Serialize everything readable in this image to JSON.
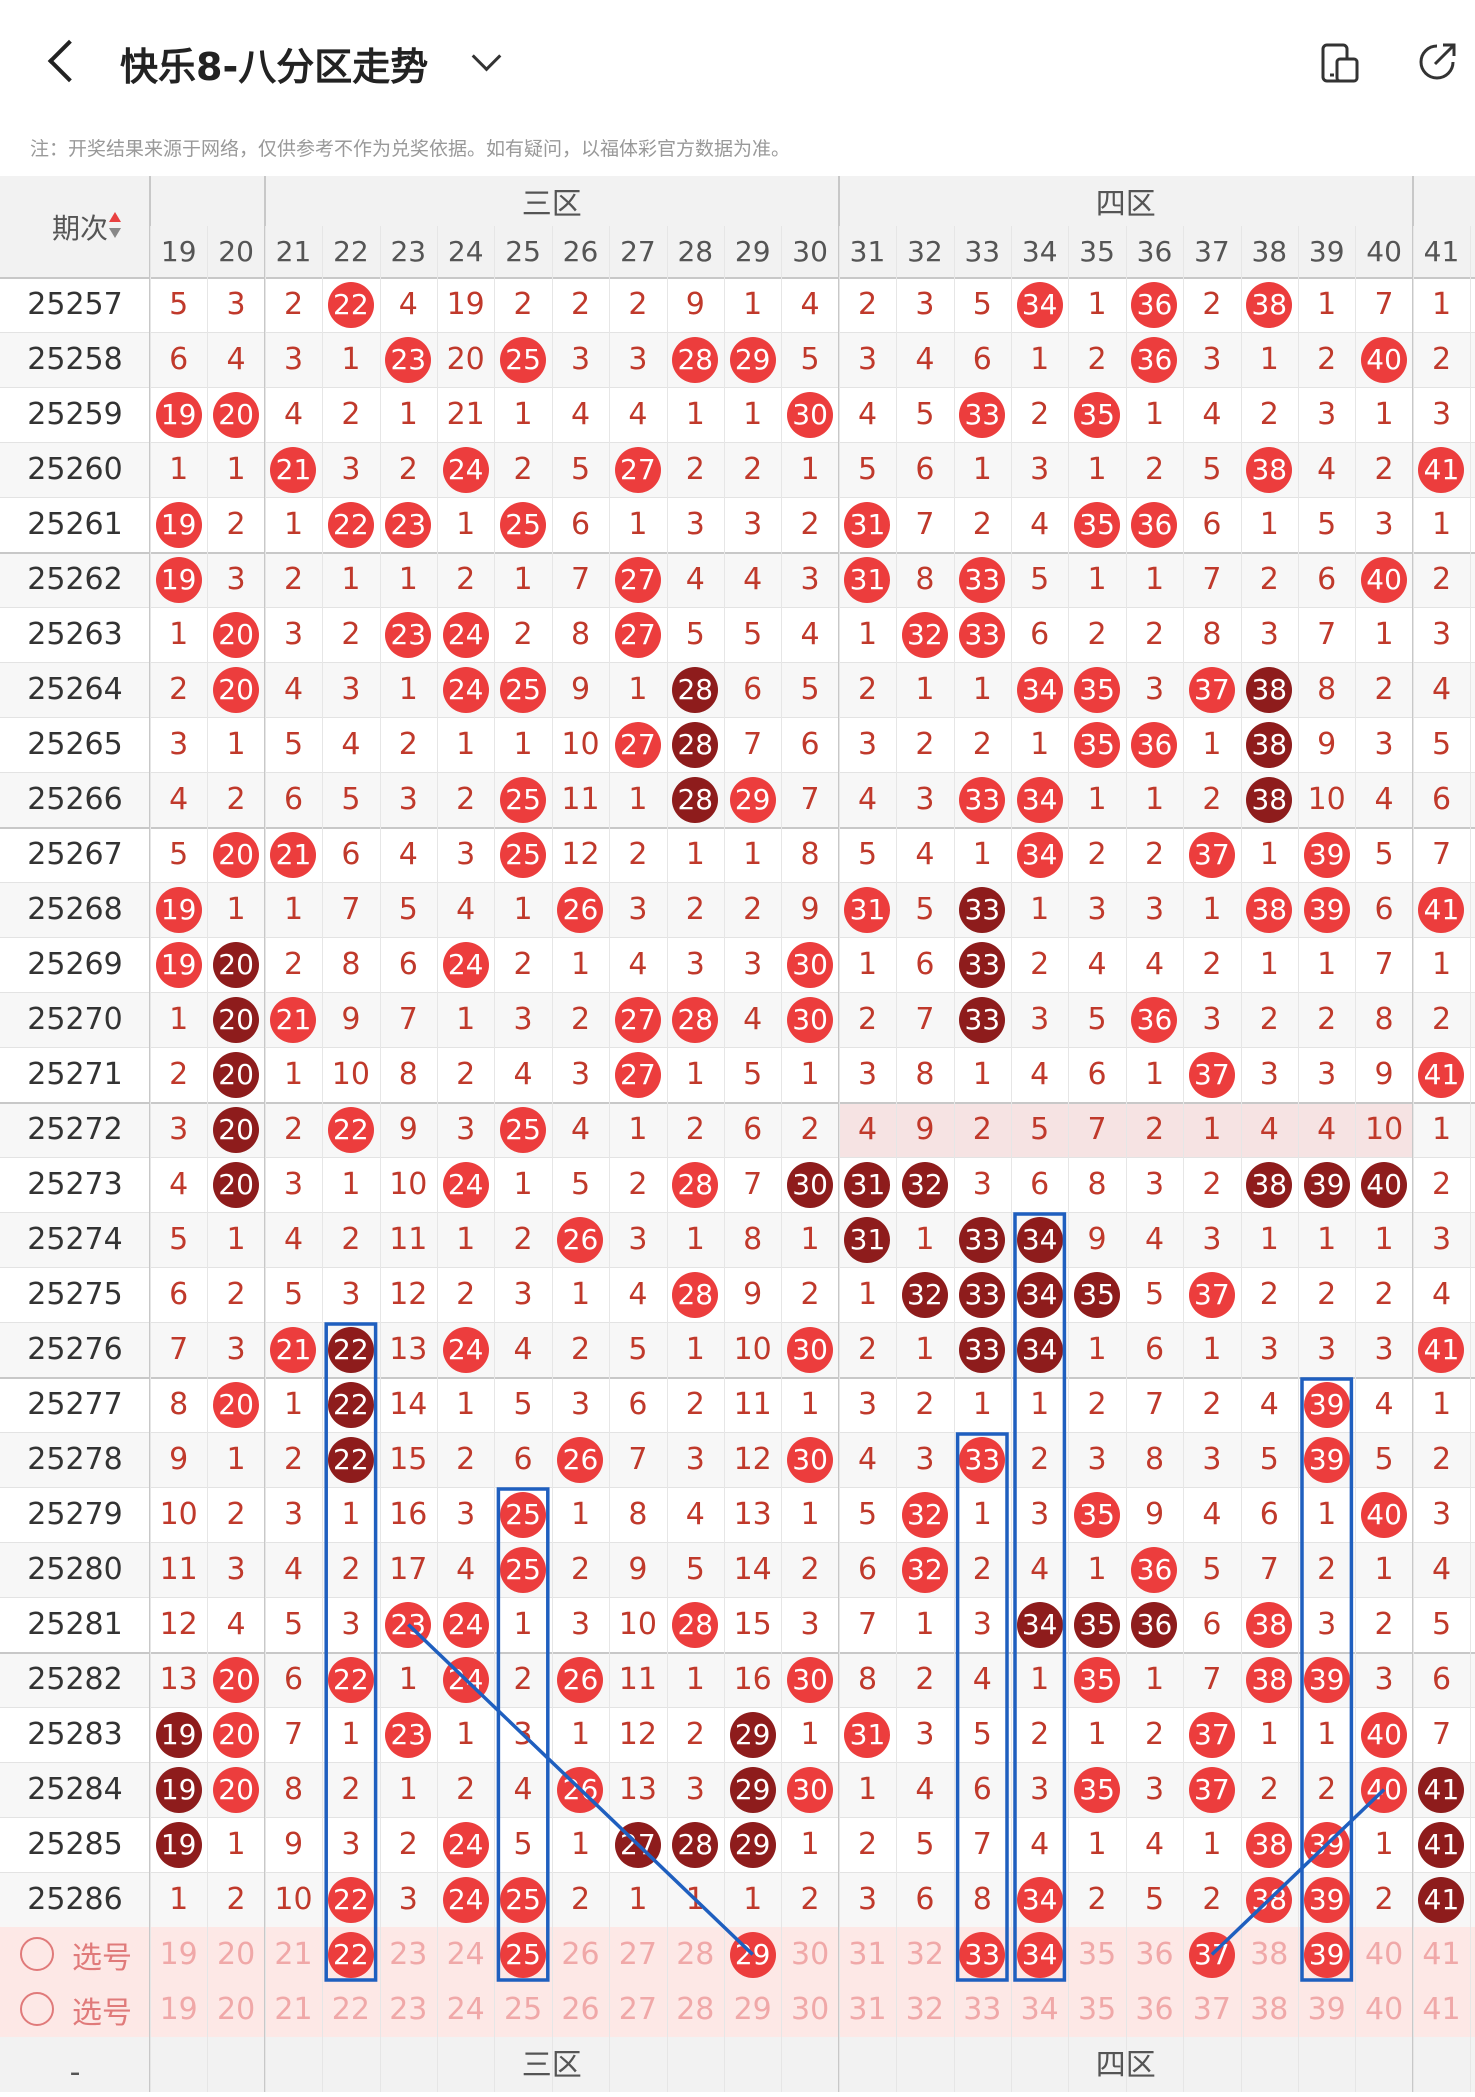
{
  "header": {
    "title": "快乐8-八分区走势",
    "back_icon": "back-arrow-icon",
    "device_icon": "device-icon",
    "share_icon": "share-icon"
  },
  "notice": "注：开奖结果来源于网络，仅供参考不作为兑奖依据。如有疑问，以福体彩官方数据为准。",
  "table": {
    "issue_header": "期次",
    "sort_icon": "sort-arrows-icon",
    "zones": [
      {
        "label": "三区"
      },
      {
        "label": "四区"
      }
    ],
    "columns": [
      "19",
      "20",
      "21",
      "22",
      "23",
      "24",
      "25",
      "26",
      "27",
      "28",
      "29",
      "30",
      "31",
      "32",
      "33",
      "34",
      "35",
      "36",
      "37",
      "38",
      "39",
      "40",
      "41"
    ],
    "rows": [
      {
        "issue": "25257",
        "cells": [
          "5",
          "3",
          "2",
          "22",
          "4",
          "19",
          "2",
          "2",
          "2",
          "9",
          "1",
          "4",
          "2",
          "3",
          "5",
          "34",
          "1",
          "36",
          "2",
          "38",
          "1",
          "7",
          "1"
        ]
      },
      {
        "issue": "25258",
        "cells": [
          "6",
          "4",
          "3",
          "1",
          "23",
          "20",
          "25",
          "3",
          "3",
          "28",
          "29",
          "5",
          "3",
          "4",
          "6",
          "1",
          "2",
          "36",
          "3",
          "1",
          "2",
          "40",
          "2"
        ]
      },
      {
        "issue": "25259",
        "cells": [
          "19",
          "20",
          "4",
          "2",
          "1",
          "21",
          "1",
          "4",
          "4",
          "1",
          "1",
          "30",
          "4",
          "5",
          "33",
          "2",
          "35",
          "1",
          "4",
          "2",
          "3",
          "1",
          "3"
        ]
      },
      {
        "issue": "25260",
        "cells": [
          "1",
          "1",
          "21",
          "3",
          "2",
          "24",
          "2",
          "5",
          "27",
          "2",
          "2",
          "1",
          "5",
          "6",
          "1",
          "3",
          "1",
          "2",
          "5",
          "38",
          "4",
          "2",
          "41"
        ]
      },
      {
        "issue": "25261",
        "cells": [
          "19",
          "2",
          "1",
          "22",
          "23",
          "1",
          "25",
          "6",
          "1",
          "3",
          "3",
          "2",
          "31",
          "7",
          "2",
          "4",
          "35",
          "36",
          "6",
          "1",
          "5",
          "3",
          "1"
        ]
      },
      {
        "issue": "25262",
        "cells": [
          "19",
          "3",
          "2",
          "1",
          "1",
          "2",
          "1",
          "7",
          "27",
          "4",
          "4",
          "3",
          "31",
          "8",
          "33",
          "5",
          "1",
          "1",
          "7",
          "2",
          "6",
          "40",
          "2"
        ]
      },
      {
        "issue": "25263",
        "cells": [
          "1",
          "20",
          "3",
          "2",
          "23",
          "24",
          "2",
          "8",
          "27",
          "5",
          "5",
          "4",
          "1",
          "32",
          "33",
          "6",
          "2",
          "2",
          "8",
          "3",
          "7",
          "1",
          "3"
        ]
      },
      {
        "issue": "25264",
        "cells": [
          "2",
          "20",
          "4",
          "3",
          "1",
          "24",
          "25",
          "9",
          "1",
          "28",
          "6",
          "5",
          "2",
          "1",
          "1",
          "34",
          "35",
          "3",
          "37",
          "38",
          "8",
          "2",
          "4"
        ]
      },
      {
        "issue": "25265",
        "cells": [
          "3",
          "1",
          "5",
          "4",
          "2",
          "1",
          "1",
          "10",
          "27",
          "28",
          "7",
          "6",
          "3",
          "2",
          "2",
          "1",
          "35",
          "36",
          "1",
          "38",
          "9",
          "3",
          "5"
        ]
      },
      {
        "issue": "25266",
        "cells": [
          "4",
          "2",
          "6",
          "5",
          "3",
          "2",
          "25",
          "11",
          "1",
          "28",
          "29",
          "7",
          "4",
          "3",
          "33",
          "34",
          "1",
          "1",
          "2",
          "38",
          "10",
          "4",
          "6"
        ]
      },
      {
        "issue": "25267",
        "cells": [
          "5",
          "20",
          "21",
          "6",
          "4",
          "3",
          "25",
          "12",
          "2",
          "1",
          "1",
          "8",
          "5",
          "4",
          "1",
          "34",
          "2",
          "2",
          "37",
          "1",
          "39",
          "5",
          "7"
        ]
      },
      {
        "issue": "25268",
        "cells": [
          "19",
          "1",
          "1",
          "7",
          "5",
          "4",
          "1",
          "26",
          "3",
          "2",
          "2",
          "9",
          "31",
          "5",
          "33",
          "1",
          "3",
          "3",
          "1",
          "38",
          "39",
          "6",
          "41"
        ]
      },
      {
        "issue": "25269",
        "cells": [
          "19",
          "20",
          "2",
          "8",
          "6",
          "24",
          "2",
          "1",
          "4",
          "3",
          "3",
          "30",
          "1",
          "6",
          "33",
          "2",
          "4",
          "4",
          "2",
          "1",
          "1",
          "7",
          "1"
        ]
      },
      {
        "issue": "25270",
        "cells": [
          "1",
          "20",
          "21",
          "9",
          "7",
          "1",
          "3",
          "2",
          "27",
          "28",
          "4",
          "30",
          "2",
          "7",
          "33",
          "3",
          "5",
          "36",
          "3",
          "2",
          "2",
          "8",
          "2"
        ]
      },
      {
        "issue": "25271",
        "cells": [
          "2",
          "20",
          "1",
          "10",
          "8",
          "2",
          "4",
          "3",
          "27",
          "1",
          "5",
          "1",
          "3",
          "8",
          "1",
          "4",
          "6",
          "1",
          "37",
          "3",
          "3",
          "9",
          "41"
        ]
      },
      {
        "issue": "25272",
        "cells": [
          "3",
          "20",
          "2",
          "22",
          "9",
          "3",
          "25",
          "4",
          "1",
          "2",
          "6",
          "2",
          "4",
          "9",
          "2",
          "5",
          "7",
          "2",
          "1",
          "4",
          "4",
          "10",
          "1"
        ]
      },
      {
        "issue": "25273",
        "cells": [
          "4",
          "20",
          "3",
          "1",
          "10",
          "24",
          "1",
          "5",
          "2",
          "28",
          "7",
          "30",
          "31",
          "32",
          "3",
          "6",
          "8",
          "3",
          "2",
          "38",
          "39",
          "40",
          "2"
        ]
      },
      {
        "issue": "25274",
        "cells": [
          "5",
          "1",
          "4",
          "2",
          "11",
          "1",
          "2",
          "26",
          "3",
          "1",
          "8",
          "1",
          "31",
          "1",
          "33",
          "34",
          "9",
          "4",
          "3",
          "1",
          "1",
          "1",
          "3"
        ]
      },
      {
        "issue": "25275",
        "cells": [
          "6",
          "2",
          "5",
          "3",
          "12",
          "2",
          "3",
          "1",
          "4",
          "28",
          "9",
          "2",
          "1",
          "32",
          "33",
          "34",
          "35",
          "5",
          "37",
          "2",
          "2",
          "2",
          "4"
        ]
      },
      {
        "issue": "25276",
        "cells": [
          "7",
          "3",
          "21",
          "22",
          "13",
          "24",
          "4",
          "2",
          "5",
          "1",
          "10",
          "30",
          "2",
          "1",
          "33",
          "34",
          "1",
          "6",
          "1",
          "3",
          "3",
          "3",
          "41"
        ]
      },
      {
        "issue": "25277",
        "cells": [
          "8",
          "20",
          "1",
          "22",
          "14",
          "1",
          "5",
          "3",
          "6",
          "2",
          "11",
          "1",
          "3",
          "2",
          "1",
          "1",
          "2",
          "7",
          "2",
          "4",
          "39",
          "4",
          "1"
        ]
      },
      {
        "issue": "25278",
        "cells": [
          "9",
          "1",
          "2",
          "22",
          "15",
          "2",
          "6",
          "26",
          "7",
          "3",
          "12",
          "30",
          "4",
          "3",
          "33",
          "2",
          "3",
          "8",
          "3",
          "5",
          "39",
          "5",
          "2"
        ]
      },
      {
        "issue": "25279",
        "cells": [
          "10",
          "2",
          "3",
          "1",
          "16",
          "3",
          "25",
          "1",
          "8",
          "4",
          "13",
          "1",
          "5",
          "32",
          "1",
          "3",
          "35",
          "9",
          "4",
          "6",
          "1",
          "40",
          "3"
        ]
      },
      {
        "issue": "25280",
        "cells": [
          "11",
          "3",
          "4",
          "2",
          "17",
          "4",
          "25",
          "2",
          "9",
          "5",
          "14",
          "2",
          "6",
          "32",
          "2",
          "4",
          "1",
          "36",
          "5",
          "7",
          "2",
          "1",
          "4"
        ]
      },
      {
        "issue": "25281",
        "cells": [
          "12",
          "4",
          "5",
          "3",
          "23",
          "24",
          "1",
          "3",
          "10",
          "28",
          "15",
          "3",
          "7",
          "1",
          "3",
          "34",
          "35",
          "36",
          "6",
          "38",
          "3",
          "2",
          "5"
        ]
      },
      {
        "issue": "25282",
        "cells": [
          "13",
          "20",
          "6",
          "22",
          "1",
          "24",
          "2",
          "26",
          "11",
          "1",
          "16",
          "30",
          "8",
          "2",
          "4",
          "1",
          "35",
          "1",
          "7",
          "38",
          "39",
          "3",
          "6"
        ]
      },
      {
        "issue": "25283",
        "cells": [
          "19",
          "20",
          "7",
          "1",
          "23",
          "1",
          "3",
          "1",
          "12",
          "2",
          "29",
          "1",
          "31",
          "3",
          "5",
          "2",
          "1",
          "2",
          "37",
          "1",
          "1",
          "40",
          "7"
        ]
      },
      {
        "issue": "25284",
        "cells": [
          "19",
          "20",
          "8",
          "2",
          "1",
          "2",
          "4",
          "26",
          "13",
          "3",
          "29",
          "30",
          "1",
          "4",
          "6",
          "3",
          "35",
          "3",
          "37",
          "2",
          "2",
          "40",
          "41"
        ]
      },
      {
        "issue": "25285",
        "cells": [
          "19",
          "1",
          "9",
          "3",
          "2",
          "24",
          "5",
          "1",
          "27",
          "28",
          "29",
          "1",
          "2",
          "5",
          "7",
          "4",
          "1",
          "4",
          "1",
          "38",
          "39",
          "1",
          "41"
        ]
      },
      {
        "issue": "25286",
        "cells": [
          "1",
          "2",
          "10",
          "22",
          "3",
          "24",
          "25",
          "2",
          "1",
          "1",
          "1",
          "2",
          "3",
          "6",
          "8",
          "34",
          "2",
          "5",
          "2",
          "38",
          "39",
          "2",
          "41"
        ]
      }
    ],
    "select_rows": [
      {
        "label": "选号",
        "picked": [
          "22",
          "25",
          "29",
          "33",
          "34",
          "37",
          "39"
        ]
      },
      {
        "label": "选号",
        "picked": []
      }
    ],
    "footer_zones": [
      {
        "label": "三区"
      },
      {
        "label": "四区"
      }
    ],
    "footer_issue_label": "-"
  }
}
